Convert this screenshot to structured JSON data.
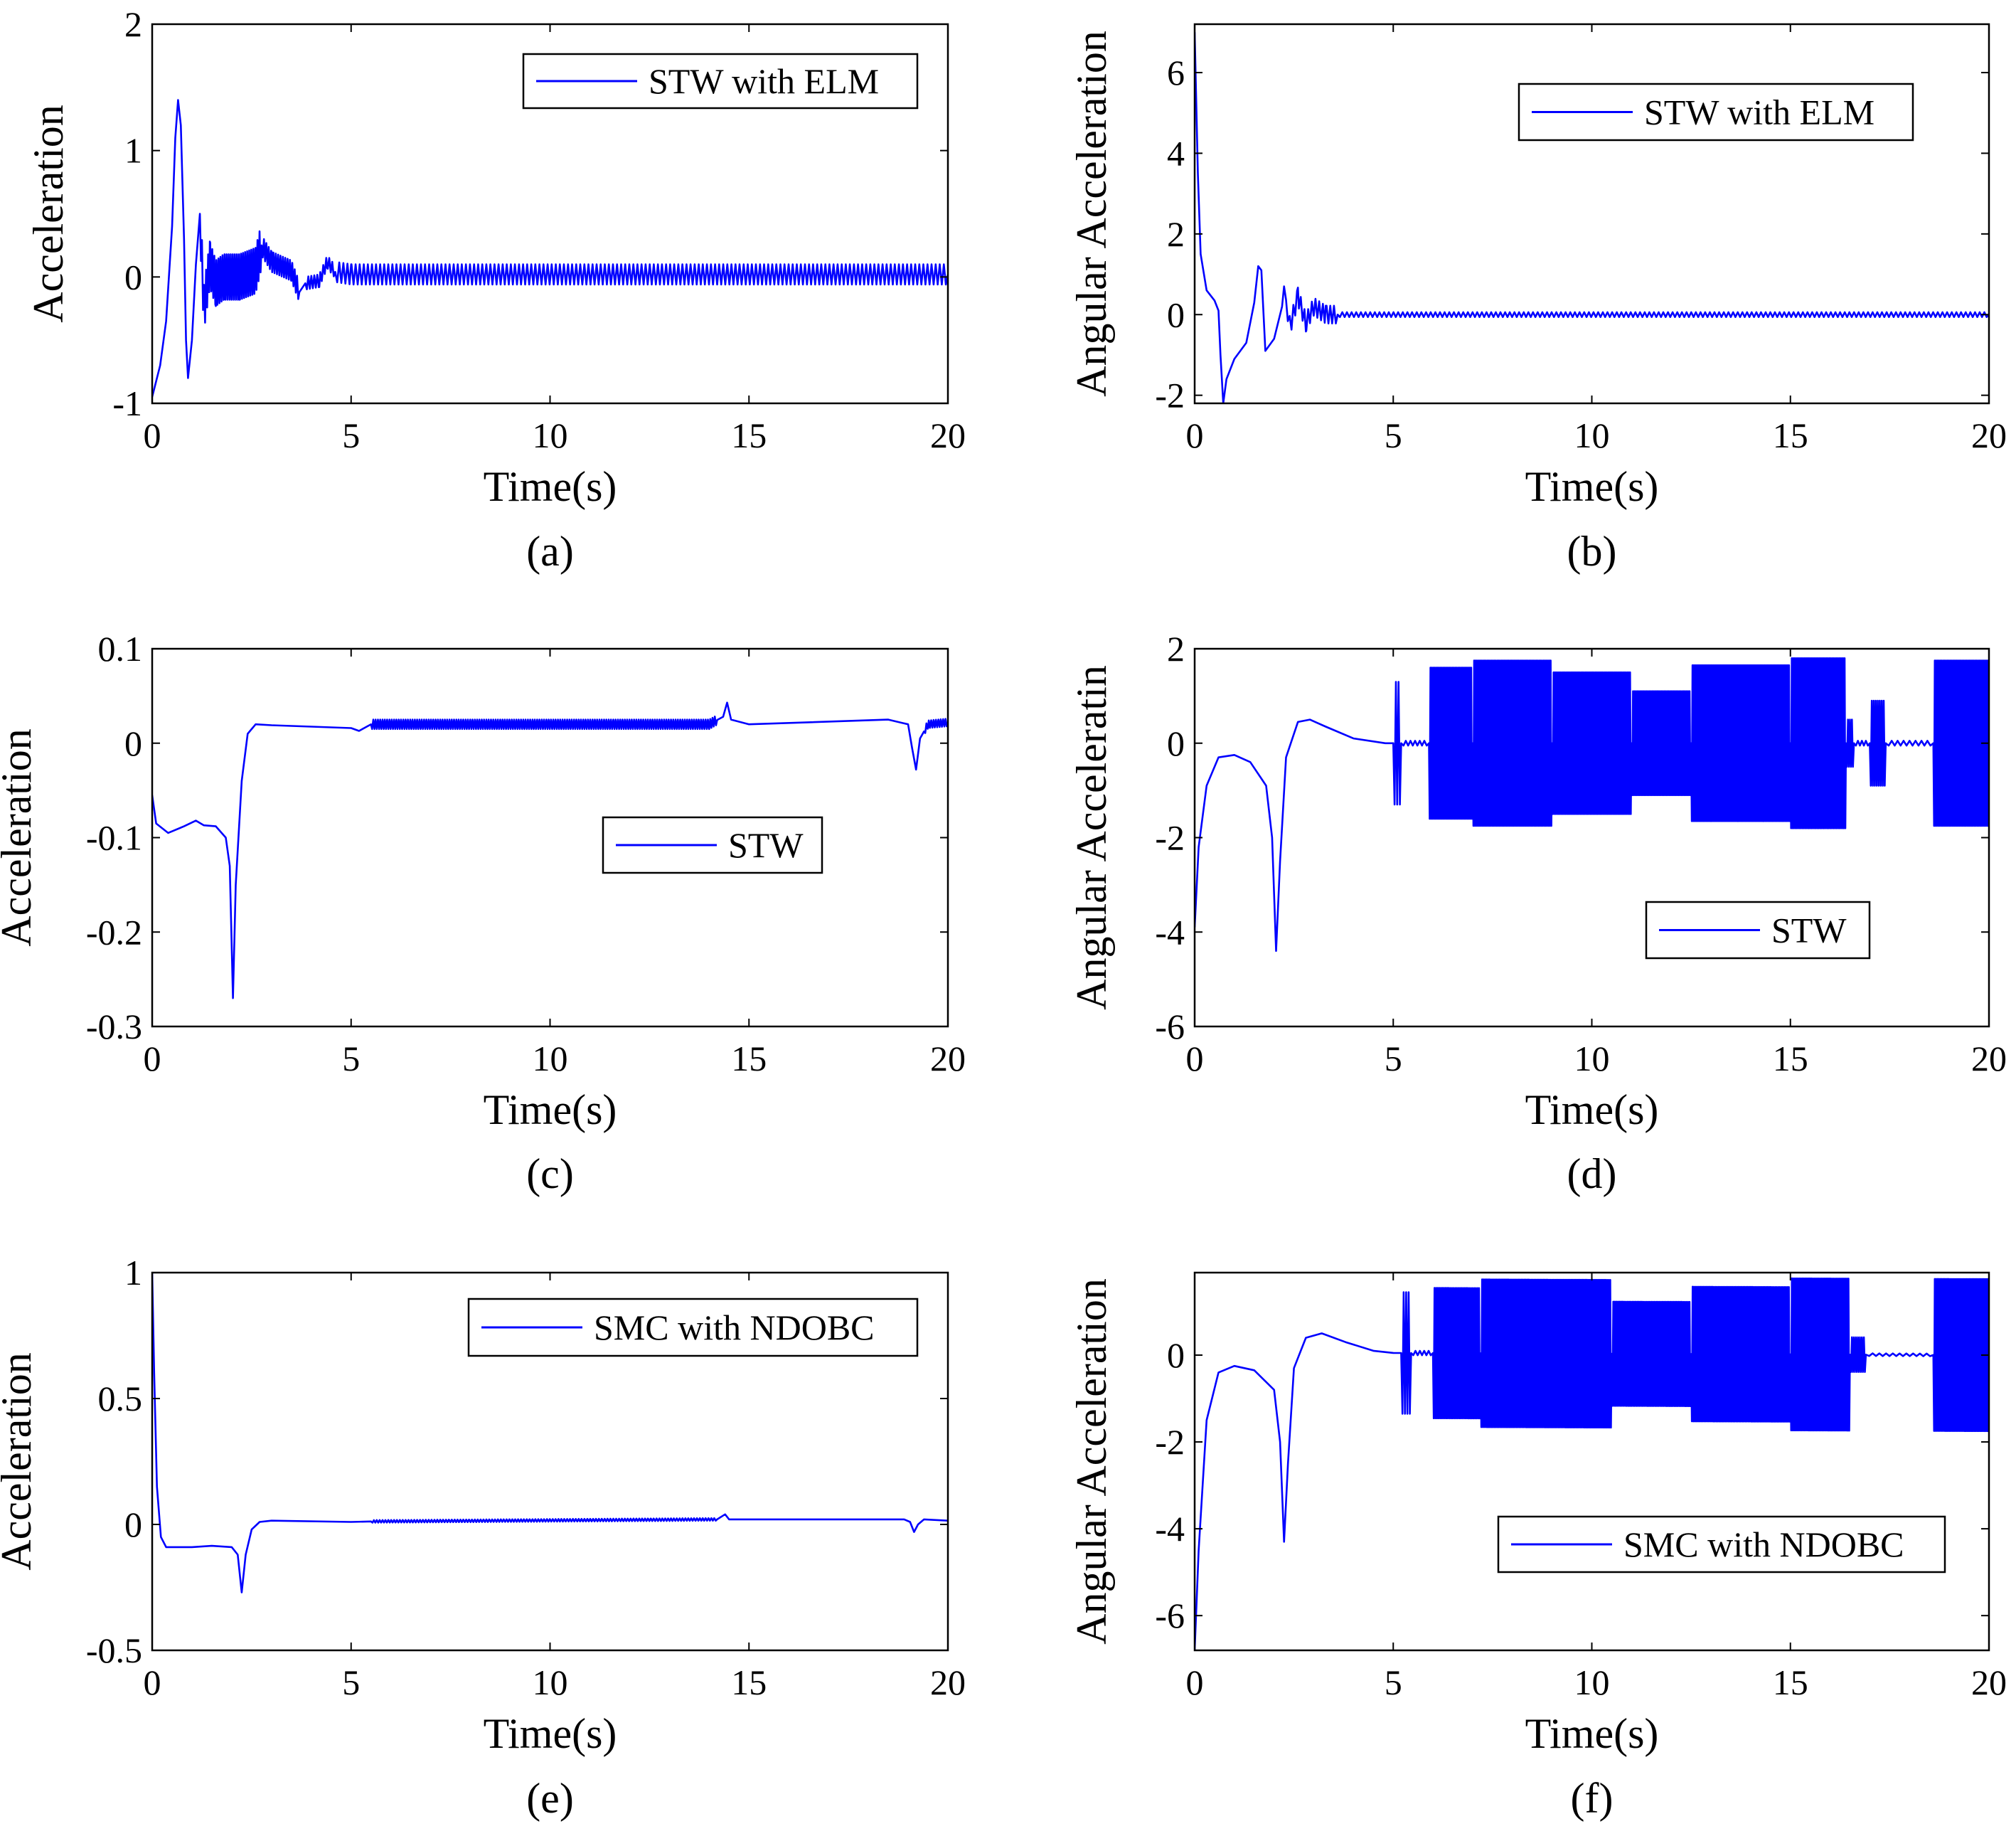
{
  "figure": {
    "line_color": "#0000ff",
    "panel_ids": [
      "a",
      "b",
      "c",
      "d",
      "e",
      "f"
    ]
  },
  "chart_data": [
    {
      "id": "a",
      "type": "line",
      "caption": "(a)",
      "xlabel": "Time(s)",
      "ylabel": "Acceleration",
      "xlim": [
        0,
        20
      ],
      "ylim": [
        -1,
        2
      ],
      "xticks": [
        0,
        5,
        10,
        15,
        20
      ],
      "xtick_labels": [
        "0",
        "5",
        "10",
        "15",
        "20"
      ],
      "yticks": [
        -1,
        0,
        1,
        2
      ],
      "ytick_labels": [
        "-1",
        "0",
        "1",
        "2"
      ],
      "legend": {
        "label": "STW with ELM",
        "placement": "top-right"
      },
      "series": [
        {
          "name": "STW with ELM",
          "points": [
            [
              0,
              -0.95
            ],
            [
              0.2,
              -0.7
            ],
            [
              0.35,
              -0.35
            ],
            [
              0.5,
              0.4
            ],
            [
              0.58,
              1.1
            ],
            [
              0.65,
              1.4
            ],
            [
              0.72,
              1.2
            ],
            [
              0.8,
              0.3
            ],
            [
              0.85,
              -0.5
            ],
            [
              0.9,
              -0.8
            ],
            [
              1.0,
              -0.5
            ],
            [
              1.1,
              0.1
            ],
            [
              1.2,
              0.5
            ],
            [
              1.3,
              -0.25
            ],
            [
              1.45,
              0.1
            ],
            [
              1.6,
              -0.05
            ],
            [
              1.8,
              0.0
            ],
            [
              2.2,
              0.0
            ],
            [
              2.6,
              0.05
            ],
            [
              2.75,
              0.25
            ],
            [
              3.0,
              0.12
            ],
            [
              3.5,
              0.05
            ],
            [
              3.7,
              -0.12
            ],
            [
              3.85,
              -0.05
            ],
            [
              4.2,
              -0.03
            ],
            [
              4.4,
              0.12
            ],
            [
              4.6,
              0.04
            ],
            [
              5.0,
              0.02
            ],
            [
              20,
              0.02
            ]
          ],
          "oscillation": [
            {
              "from": 1.2,
              "to": 2.75,
              "amplitude": 0.18,
              "cycles": 30
            },
            {
              "from": 2.75,
              "to": 3.7,
              "amplitude": 0.08,
              "cycles": 16
            },
            {
              "from": 3.85,
              "to": 4.6,
              "amplitude": 0.05,
              "cycles": 10
            },
            {
              "from": 4.6,
              "to": 20,
              "amplitude": 0.08,
              "cycles": 150
            }
          ]
        }
      ]
    },
    {
      "id": "b",
      "type": "line",
      "caption": "(b)",
      "xlabel": "Time(s)",
      "ylabel": "Angular Acceleration",
      "xlim": [
        0,
        20
      ],
      "ylim": [
        -2.2,
        7.2
      ],
      "xticks": [
        0,
        5,
        10,
        15,
        20
      ],
      "xtick_labels": [
        "0",
        "5",
        "10",
        "15",
        "20"
      ],
      "yticks": [
        -2,
        0,
        2,
        4,
        6
      ],
      "ytick_labels": [
        "-2",
        "0",
        "2",
        "4",
        "6"
      ],
      "legend": {
        "label": "STW with ELM",
        "placement": "top-right"
      },
      "series": [
        {
          "name": "STW with ELM",
          "points": [
            [
              0,
              7.0
            ],
            [
              0.08,
              3.5
            ],
            [
              0.15,
              1.5
            ],
            [
              0.3,
              0.6
            ],
            [
              0.5,
              0.35
            ],
            [
              0.6,
              0.1
            ],
            [
              0.65,
              -1.0
            ],
            [
              0.72,
              -2.2
            ],
            [
              0.8,
              -1.6
            ],
            [
              1.0,
              -1.1
            ],
            [
              1.3,
              -0.7
            ],
            [
              1.5,
              0.3
            ],
            [
              1.6,
              1.2
            ],
            [
              1.68,
              1.1
            ],
            [
              1.78,
              -0.9
            ],
            [
              2.0,
              -0.6
            ],
            [
              2.2,
              0.2
            ],
            [
              2.25,
              0.7
            ],
            [
              2.4,
              -0.3
            ],
            [
              2.6,
              0.45
            ],
            [
              2.8,
              -0.2
            ],
            [
              3.0,
              0.2
            ],
            [
              3.3,
              0.0
            ],
            [
              20,
              0.0
            ]
          ],
          "oscillation": [
            {
              "from": 2.3,
              "to": 3.6,
              "amplitude": 0.22,
              "cycles": 14
            },
            {
              "from": 3.6,
              "to": 20,
              "amplitude": 0.06,
              "cycles": 140
            }
          ]
        }
      ]
    },
    {
      "id": "c",
      "type": "line",
      "caption": "(c)",
      "xlabel": "Time(s)",
      "ylabel": "Acceleration",
      "xlim": [
        0,
        20
      ],
      "ylim": [
        -0.3,
        0.1
      ],
      "xticks": [
        0,
        5,
        10,
        15,
        20
      ],
      "xtick_labels": [
        "0",
        "5",
        "10",
        "15",
        "20"
      ],
      "yticks": [
        -0.3,
        -0.2,
        -0.1,
        0,
        0.1
      ],
      "ytick_labels": [
        "-0.3",
        "-0.2",
        "-0.1",
        "0",
        "0.1"
      ],
      "legend": {
        "label": "STW",
        "placement": "middle-right"
      },
      "series": [
        {
          "name": "STW",
          "points": [
            [
              0,
              -0.055
            ],
            [
              0.1,
              -0.085
            ],
            [
              0.4,
              -0.095
            ],
            [
              0.8,
              -0.088
            ],
            [
              1.1,
              -0.082
            ],
            [
              1.3,
              -0.087
            ],
            [
              1.6,
              -0.088
            ],
            [
              1.85,
              -0.1
            ],
            [
              1.95,
              -0.13
            ],
            [
              2.03,
              -0.27
            ],
            [
              2.1,
              -0.15
            ],
            [
              2.25,
              -0.04
            ],
            [
              2.4,
              0.01
            ],
            [
              2.6,
              0.02
            ],
            [
              3.0,
              0.019
            ],
            [
              5.0,
              0.016
            ],
            [
              5.2,
              0.013
            ],
            [
              5.5,
              0.02
            ],
            [
              14.0,
              0.02
            ],
            [
              14.35,
              0.028
            ],
            [
              14.45,
              0.043
            ],
            [
              14.55,
              0.025
            ],
            [
              15,
              0.02
            ],
            [
              18.5,
              0.025
            ],
            [
              19.0,
              0.02
            ],
            [
              19.1,
              -0.005
            ],
            [
              19.2,
              -0.028
            ],
            [
              19.3,
              0.005
            ],
            [
              19.5,
              0.02
            ],
            [
              20,
              0.022
            ]
          ],
          "oscillation": [
            {
              "from": 5.5,
              "to": 14.2,
              "amplitude": 0.005,
              "cycles": 150
            },
            {
              "from": 19.4,
              "to": 20,
              "amplitude": 0.004,
              "cycles": 10
            }
          ]
        }
      ]
    },
    {
      "id": "d",
      "type": "line",
      "caption": "(d)",
      "xlabel": "Time(s)",
      "ylabel": "Angular Acceleratin",
      "xlim": [
        0,
        20
      ],
      "ylim": [
        -6,
        2
      ],
      "xticks": [
        0,
        5,
        10,
        15,
        20
      ],
      "xtick_labels": [
        "0",
        "5",
        "10",
        "15",
        "20"
      ],
      "yticks": [
        -6,
        -4,
        -2,
        0,
        2
      ],
      "ytick_labels": [
        "-6",
        "-4",
        "-2",
        "0",
        "2"
      ],
      "legend": {
        "label": "STW",
        "placement": "lower-right"
      },
      "series": [
        {
          "name": "STW",
          "points": [
            [
              0,
              -3.9
            ],
            [
              0.1,
              -2.2
            ],
            [
              0.3,
              -0.9
            ],
            [
              0.6,
              -0.3
            ],
            [
              1.0,
              -0.25
            ],
            [
              1.4,
              -0.4
            ],
            [
              1.8,
              -0.9
            ],
            [
              1.95,
              -2.0
            ],
            [
              2.05,
              -4.4
            ],
            [
              2.15,
              -2.5
            ],
            [
              2.3,
              -0.3
            ],
            [
              2.6,
              0.45
            ],
            [
              2.9,
              0.5
            ],
            [
              3.3,
              0.35
            ],
            [
              4.0,
              0.1
            ],
            [
              4.8,
              0.0
            ],
            [
              20,
              0.0
            ]
          ],
          "oscillation": [
            {
              "from": 5.0,
              "to": 5.2,
              "amplitude": 1.3,
              "cycles": 3
            },
            {
              "from": 5.2,
              "to": 5.9,
              "amplitude": 0.05,
              "cycles": 6
            },
            {
              "from": 5.9,
              "to": 7.0,
              "amplitude": 1.6,
              "cycles": 30
            },
            {
              "from": 7.0,
              "to": 9.0,
              "amplitude": 1.75,
              "cycles": 55
            },
            {
              "from": 9.0,
              "to": 11.0,
              "amplitude": 1.5,
              "cycles": 55
            },
            {
              "from": 11.0,
              "to": 12.5,
              "amplitude": 1.1,
              "cycles": 40
            },
            {
              "from": 12.5,
              "to": 15.0,
              "amplitude": 1.65,
              "cycles": 70
            },
            {
              "from": 15.0,
              "to": 16.4,
              "amplitude": 1.8,
              "cycles": 40
            },
            {
              "from": 16.4,
              "to": 16.6,
              "amplitude": 0.5,
              "cycles": 4
            },
            {
              "from": 16.6,
              "to": 17.0,
              "amplitude": 0.05,
              "cycles": 4
            },
            {
              "from": 17.0,
              "to": 17.4,
              "amplitude": 0.9,
              "cycles": 8
            },
            {
              "from": 17.4,
              "to": 18.6,
              "amplitude": 0.05,
              "cycles": 8
            },
            {
              "from": 18.6,
              "to": 20,
              "amplitude": 1.75,
              "cycles": 40
            }
          ]
        }
      ]
    },
    {
      "id": "e",
      "type": "line",
      "caption": "(e)",
      "xlabel": "Time(s)",
      "ylabel": "Acceleration",
      "xlim": [
        0,
        20
      ],
      "ylim": [
        -0.5,
        1
      ],
      "xticks": [
        0,
        5,
        10,
        15,
        20
      ],
      "xtick_labels": [
        "0",
        "5",
        "10",
        "15",
        "20"
      ],
      "yticks": [
        -0.5,
        0,
        0.5,
        1
      ],
      "ytick_labels": [
        "-0.5",
        "0",
        "0.5",
        "1"
      ],
      "legend": {
        "label": "SMC with NDOBC",
        "placement": "top-right"
      },
      "series": [
        {
          "name": "SMC with NDOBC",
          "points": [
            [
              0,
              1.0
            ],
            [
              0.05,
              0.6
            ],
            [
              0.12,
              0.15
            ],
            [
              0.22,
              -0.05
            ],
            [
              0.35,
              -0.09
            ],
            [
              0.6,
              -0.09
            ],
            [
              1.0,
              -0.09
            ],
            [
              1.5,
              -0.085
            ],
            [
              2.0,
              -0.09
            ],
            [
              2.15,
              -0.12
            ],
            [
              2.25,
              -0.27
            ],
            [
              2.35,
              -0.12
            ],
            [
              2.5,
              -0.02
            ],
            [
              2.7,
              0.01
            ],
            [
              3.0,
              0.015
            ],
            [
              5.0,
              0.01
            ],
            [
              5.5,
              0.012
            ],
            [
              14.2,
              0.02
            ],
            [
              14.4,
              0.04
            ],
            [
              14.5,
              0.02
            ],
            [
              18.9,
              0.02
            ],
            [
              19.05,
              0.01
            ],
            [
              19.15,
              -0.03
            ],
            [
              19.25,
              0.0
            ],
            [
              19.4,
              0.02
            ],
            [
              20,
              0.015
            ]
          ],
          "oscillation": [
            {
              "from": 5.5,
              "to": 14.2,
              "amplitude": 0.005,
              "cycles": 120
            }
          ]
        }
      ]
    },
    {
      "id": "f",
      "type": "line",
      "caption": "(f)",
      "xlabel": "Time(s)",
      "ylabel": "Angular Acceleration",
      "xlim": [
        0,
        20
      ],
      "ylim": [
        -6.8,
        1.9
      ],
      "xticks": [
        0,
        5,
        10,
        15,
        20
      ],
      "xtick_labels": [
        "0",
        "5",
        "10",
        "15",
        "20"
      ],
      "yticks": [
        -6,
        -4,
        -2,
        0
      ],
      "ytick_labels": [
        "-6",
        "-4",
        "-2",
        "0"
      ],
      "legend": {
        "label": "SMC with NDOBC",
        "placement": "lower-right"
      },
      "series": [
        {
          "name": "SMC with NDOBC",
          "points": [
            [
              0,
              -6.8
            ],
            [
              0.1,
              -4.5
            ],
            [
              0.3,
              -1.5
            ],
            [
              0.6,
              -0.4
            ],
            [
              1.0,
              -0.25
            ],
            [
              1.5,
              -0.35
            ],
            [
              2.0,
              -0.8
            ],
            [
              2.15,
              -2.0
            ],
            [
              2.25,
              -4.3
            ],
            [
              2.35,
              -2.5
            ],
            [
              2.5,
              -0.3
            ],
            [
              2.8,
              0.4
            ],
            [
              3.2,
              0.5
            ],
            [
              3.8,
              0.3
            ],
            [
              4.5,
              0.1
            ],
            [
              5.0,
              0.05
            ],
            [
              20,
              0.0
            ]
          ],
          "oscillation": [
            {
              "from": 5.2,
              "to": 5.45,
              "amplitude": 1.4,
              "cycles": 4
            },
            {
              "from": 5.45,
              "to": 6.0,
              "amplitude": 0.05,
              "cycles": 5
            },
            {
              "from": 6.0,
              "to": 7.2,
              "amplitude": 1.5,
              "cycles": 30
            },
            {
              "from": 7.2,
              "to": 10.5,
              "amplitude": 1.7,
              "cycles": 90
            },
            {
              "from": 10.5,
              "to": 12.5,
              "amplitude": 1.2,
              "cycles": 50
            },
            {
              "from": 12.5,
              "to": 15.0,
              "amplitude": 1.55,
              "cycles": 65
            },
            {
              "from": 15.0,
              "to": 16.5,
              "amplitude": 1.75,
              "cycles": 40
            },
            {
              "from": 16.5,
              "to": 16.9,
              "amplitude": 0.4,
              "cycles": 8
            },
            {
              "from": 16.9,
              "to": 18.6,
              "amplitude": 0.03,
              "cycles": 10
            },
            {
              "from": 18.6,
              "to": 20,
              "amplitude": 1.75,
              "cycles": 40
            }
          ]
        }
      ]
    }
  ]
}
